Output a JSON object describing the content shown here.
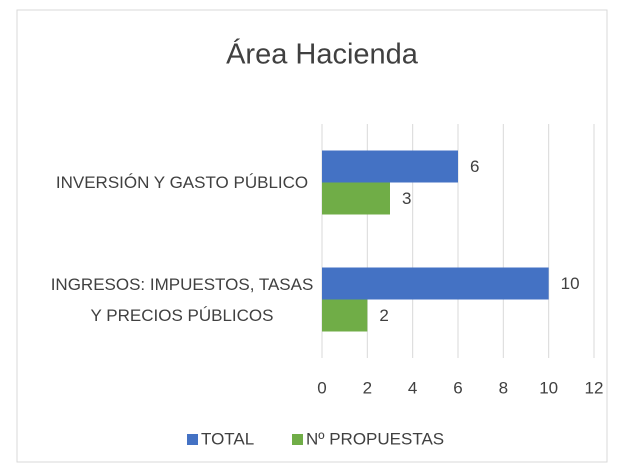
{
  "chart_data": {
    "type": "hbar",
    "title": "Área Hacienda",
    "categories": [
      "INVERSIÓN Y GASTO PÚBLICO",
      "INGRESOS: IMPUESTOS, TASAS Y PRECIOS PÚBLICOS"
    ],
    "series": [
      {
        "name": "TOTAL",
        "color": "#4472c4",
        "values": [
          6,
          10
        ]
      },
      {
        "name": "Nº PROPUESTAS",
        "color": "#70ad47",
        "values": [
          3,
          2
        ]
      }
    ],
    "xlim": [
      0,
      12
    ],
    "xticks": [
      0,
      2,
      4,
      6,
      8,
      10,
      12
    ],
    "grid": true,
    "legend": "bottom"
  }
}
